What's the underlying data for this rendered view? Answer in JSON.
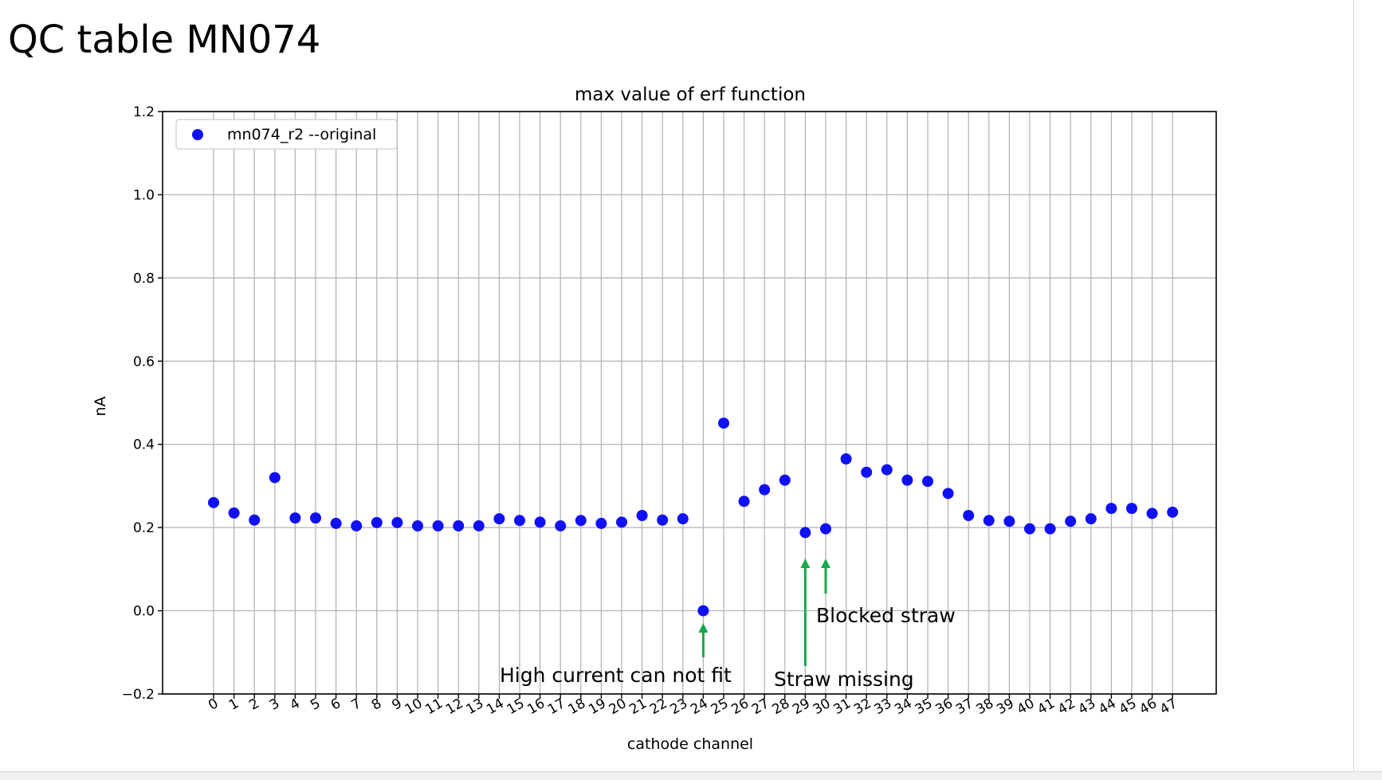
{
  "slide": {
    "title": "QC table MN074"
  },
  "colors": {
    "marker": "#1010f5",
    "annotation_arrow": "#1aa84a",
    "grid": "#b0b0b0"
  },
  "chart_data": {
    "type": "scatter",
    "title": "max value of erf function",
    "xlabel": "cathode channel",
    "ylabel": "nA",
    "ylim": [
      -0.2,
      1.2
    ],
    "yticks": [
      -0.2,
      0.0,
      0.2,
      0.4,
      0.6,
      0.8,
      1.0,
      1.2
    ],
    "ytick_labels": [
      "−0.2",
      "0.0",
      "0.2",
      "0.4",
      "0.6",
      "0.8",
      "1.0",
      "1.2"
    ],
    "xticks": [
      0,
      1,
      2,
      3,
      4,
      5,
      6,
      7,
      8,
      9,
      10,
      11,
      12,
      13,
      14,
      15,
      16,
      17,
      18,
      19,
      20,
      21,
      22,
      23,
      24,
      25,
      26,
      27,
      28,
      29,
      30,
      31,
      32,
      33,
      34,
      35,
      36,
      37,
      38,
      39,
      40,
      41,
      42,
      43,
      44,
      45,
      46,
      47
    ],
    "grid": true,
    "legend_position": "top-left",
    "series": [
      {
        "name": "mn074_r2 --original",
        "x": [
          0,
          1,
          2,
          3,
          4,
          5,
          6,
          7,
          8,
          9,
          10,
          11,
          12,
          13,
          14,
          15,
          16,
          17,
          18,
          19,
          20,
          21,
          22,
          23,
          24,
          25,
          26,
          27,
          28,
          29,
          30,
          31,
          32,
          33,
          34,
          35,
          36,
          37,
          38,
          39,
          40,
          41,
          42,
          43,
          44,
          45,
          46,
          47
        ],
        "y": [
          0.26,
          0.235,
          0.218,
          0.32,
          0.223,
          0.223,
          0.21,
          0.204,
          0.212,
          0.212,
          0.204,
          0.204,
          0.204,
          0.204,
          0.221,
          0.217,
          0.213,
          0.204,
          0.217,
          0.21,
          0.213,
          0.229,
          0.218,
          0.221,
          0.0,
          0.451,
          0.263,
          0.291,
          0.314,
          0.188,
          0.197,
          0.365,
          0.333,
          0.339,
          0.314,
          0.311,
          0.282,
          0.229,
          0.217,
          0.215,
          0.197,
          0.197,
          0.215,
          0.221,
          0.246,
          0.246,
          0.234,
          0.237
        ]
      }
    ],
    "annotations": [
      {
        "text": "High current can not fit",
        "target_x": 24,
        "target_y": 0.0
      },
      {
        "text": "Straw missing",
        "target_x": 29,
        "target_y": 0.188
      },
      {
        "text": "Blocked straw",
        "target_x": 30,
        "target_y": 0.197
      }
    ]
  }
}
